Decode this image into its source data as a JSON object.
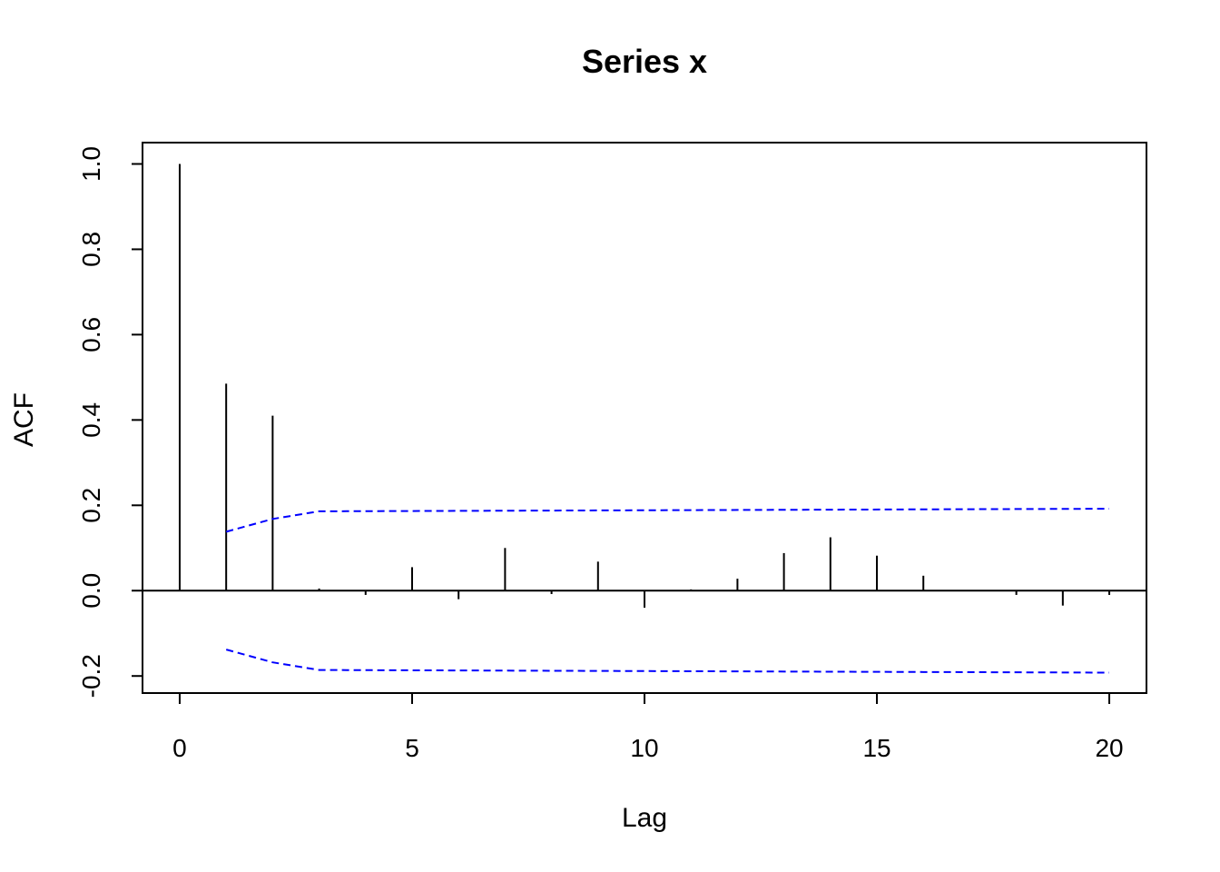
{
  "chart_data": {
    "type": "bar",
    "subtype": "acf-correlogram",
    "title": "Series  x",
    "xlabel": "Lag",
    "ylabel": "ACF",
    "xlim": [
      -0.8,
      20.8
    ],
    "ylim": [
      -0.24,
      1.05
    ],
    "x_ticks": [
      0,
      5,
      10,
      15,
      20
    ],
    "y_ticks": [
      -0.2,
      0.0,
      0.2,
      0.4,
      0.6,
      0.8,
      1.0
    ],
    "y_tick_labels": [
      "-0.2",
      "0.0",
      "0.2",
      "0.4",
      "0.6",
      "0.8",
      "1.0"
    ],
    "x_tick_labels": [
      "0",
      "5",
      "10",
      "15",
      "20"
    ],
    "lags": [
      0,
      1,
      2,
      3,
      4,
      5,
      6,
      7,
      8,
      9,
      10,
      11,
      12,
      13,
      14,
      15,
      16,
      17,
      18,
      19,
      20
    ],
    "acf": [
      1.0,
      0.485,
      0.41,
      0.005,
      -0.01,
      0.055,
      -0.02,
      0.1,
      -0.008,
      0.068,
      -0.04,
      0.003,
      0.028,
      0.088,
      0.125,
      0.082,
      0.035,
      0.0,
      -0.01,
      -0.035,
      -0.01
    ],
    "confidence_band": {
      "color": "#0000ff",
      "style": "dashed",
      "lags": [
        1,
        2,
        3,
        20
      ],
      "upper": [
        0.138,
        0.168,
        0.186,
        0.192
      ],
      "lower": [
        -0.138,
        -0.168,
        -0.186,
        -0.192
      ]
    },
    "bar_color": "#000000",
    "grid": false,
    "legend": "none"
  }
}
